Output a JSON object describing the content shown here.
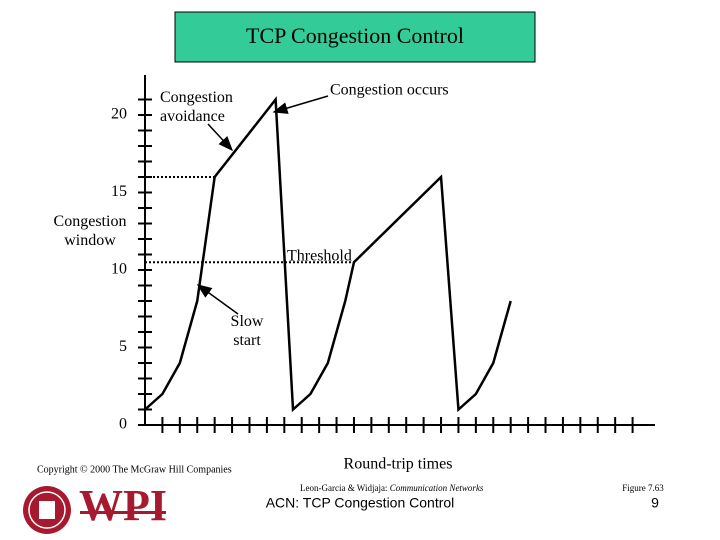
{
  "chart_data": {
    "type": "line",
    "title": "TCP Congestion Control",
    "x_label": "Round-trip times",
    "y_label": "Congestion window",
    "x": [
      0,
      1,
      2,
      3,
      4,
      7.5,
      8.5,
      9.5,
      10.5,
      11.5,
      12,
      17,
      18,
      19,
      20,
      21
    ],
    "series": [
      {
        "color": "#000000",
        "values": [
          1,
          2,
          4,
          8,
          16,
          21,
          1,
          2,
          4,
          8,
          10.5,
          16,
          1,
          2,
          4,
          8
        ]
      }
    ],
    "thresholds": [
      {
        "x": [
          0,
          4
        ],
        "values": [
          16,
          16
        ]
      },
      {
        "x": [
          0,
          12
        ],
        "values": [
          10.5,
          10.5
        ]
      }
    ],
    "xlim": [
      0,
      29
    ],
    "ylim": [
      0,
      22
    ],
    "yticks": [
      0,
      5,
      10,
      15,
      20
    ],
    "yminorticks": [
      1,
      2,
      3,
      4,
      6,
      7,
      8,
      9,
      11,
      12,
      13,
      14,
      16,
      17,
      18,
      19,
      21
    ],
    "xtickmarks": [
      1,
      2,
      3,
      4,
      5,
      6,
      7,
      8,
      9,
      10,
      11,
      12,
      13,
      14,
      15,
      16,
      17,
      18,
      19,
      20,
      21,
      22,
      23,
      24,
      25,
      26,
      27,
      28
    ],
    "annotations": {
      "avoidance": "Congestion avoidance",
      "occurs": "Congestion occurs",
      "threshold": "Threshold",
      "slow_start": "Slow start"
    }
  },
  "footer": {
    "copyright": "Copyright © 2000 The McGraw Hill Companies",
    "reference": "Leon-Garcia & Widjaja:",
    "reference_book": "Communication Networks",
    "figure": "Figure 7.63",
    "course": "ACN: TCP Congestion Control",
    "page": "9",
    "logo": "WPI"
  }
}
